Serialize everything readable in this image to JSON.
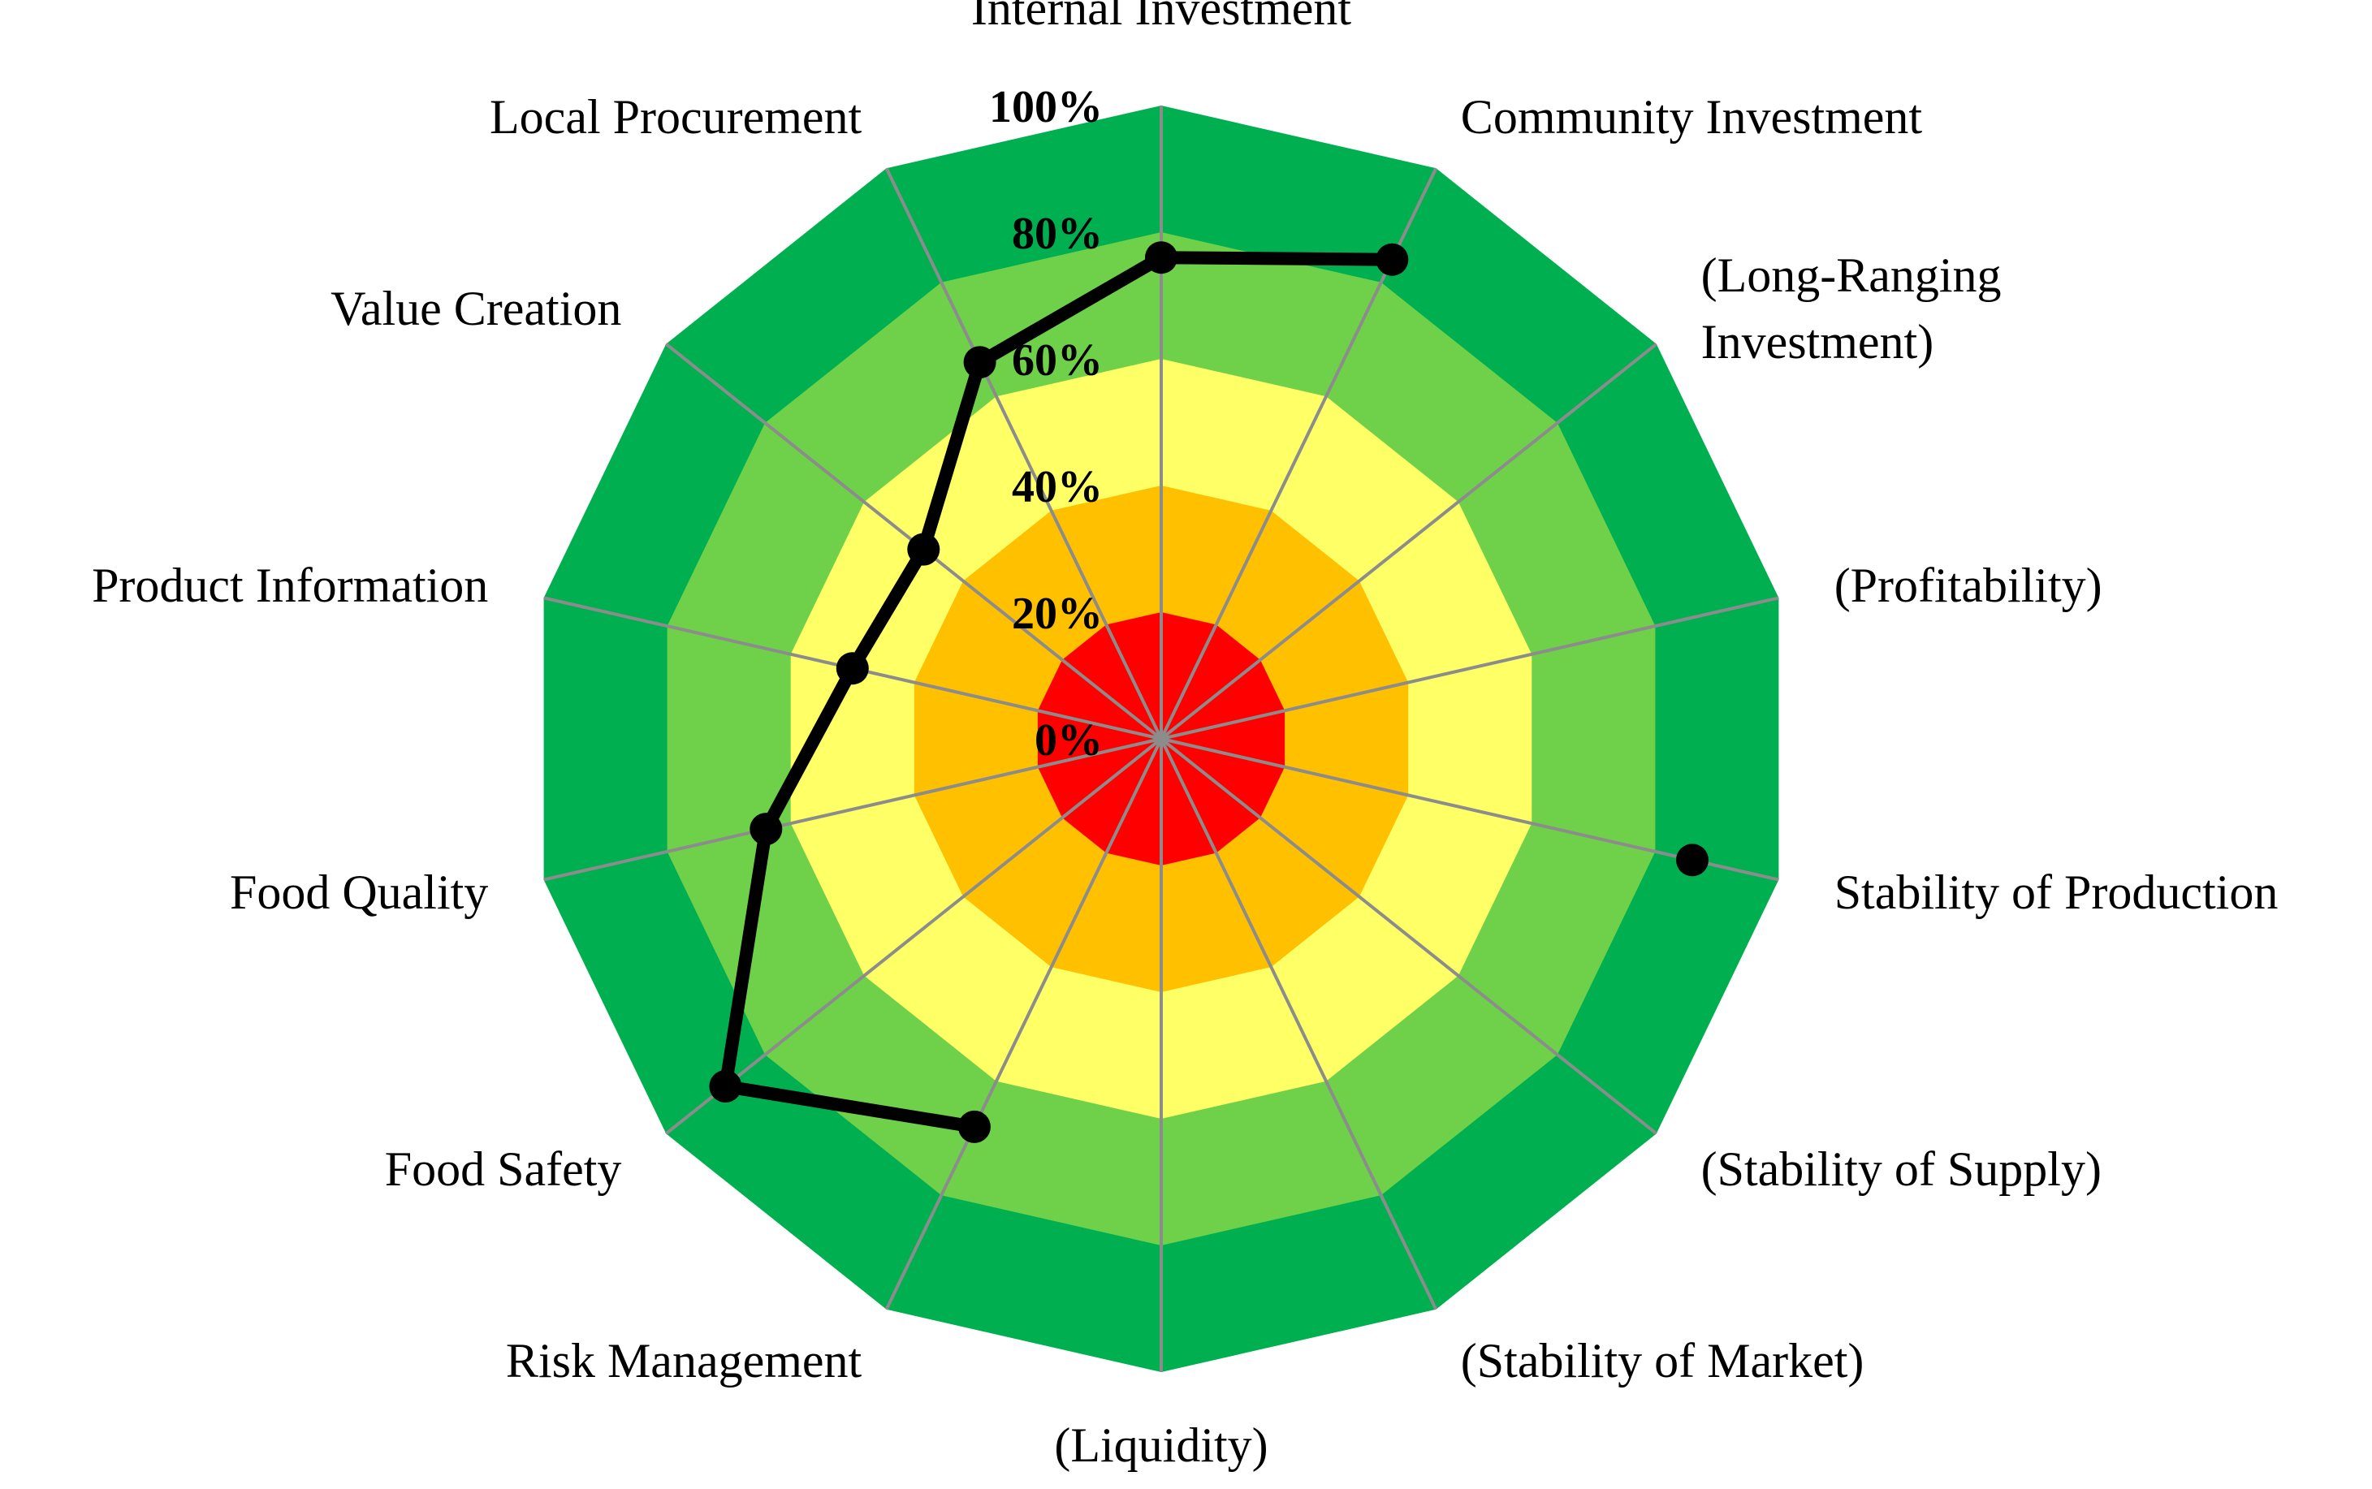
{
  "chart_data": {
    "type": "radar",
    "axes": [
      {
        "label": "Internal Investment",
        "value": 76
      },
      {
        "label": "Community Investment",
        "value": 84
      },
      {
        "label": "(Long-Ranging\nInvestment)",
        "value": null
      },
      {
        "label": "(Profitability)",
        "value": null
      },
      {
        "label": "Stability of Production",
        "value": 86
      },
      {
        "label": "(Stability of Supply)",
        "value": null
      },
      {
        "label": "(Stability of Market)",
        "value": null
      },
      {
        "label": "(Liquidity)",
        "value": null
      },
      {
        "label": "Risk Management",
        "value": 68
      },
      {
        "label": "Food Safety",
        "value": 88
      },
      {
        "label": "Food Quality",
        "value": 64
      },
      {
        "label": "Product Information",
        "value": 50
      },
      {
        "label": "Value Creation",
        "value": 48
      },
      {
        "label": "Local Procurement",
        "value": 66
      }
    ],
    "polyline_order": [
      4,
      8,
      9,
      10,
      11,
      12,
      13,
      0,
      1
    ],
    "isolated_points": [
      4
    ],
    "ticks": [
      "0%",
      "20%",
      "40%",
      "60%",
      "80%",
      "100%"
    ],
    "tick_values": [
      0,
      20,
      40,
      60,
      80,
      100
    ],
    "rlim": [
      0,
      100
    ],
    "bands": [
      {
        "from": 0,
        "to": 20,
        "color": "#ff0000"
      },
      {
        "from": 20,
        "to": 40,
        "color": "#ffc000"
      },
      {
        "from": 40,
        "to": 60,
        "color": "#ffff66"
      },
      {
        "from": 60,
        "to": 80,
        "color": "#6fd04a"
      },
      {
        "from": 80,
        "to": 100,
        "color": "#00b050"
      }
    ],
    "spoke_color": "#8c8c8c",
    "series_color": "#000000"
  }
}
